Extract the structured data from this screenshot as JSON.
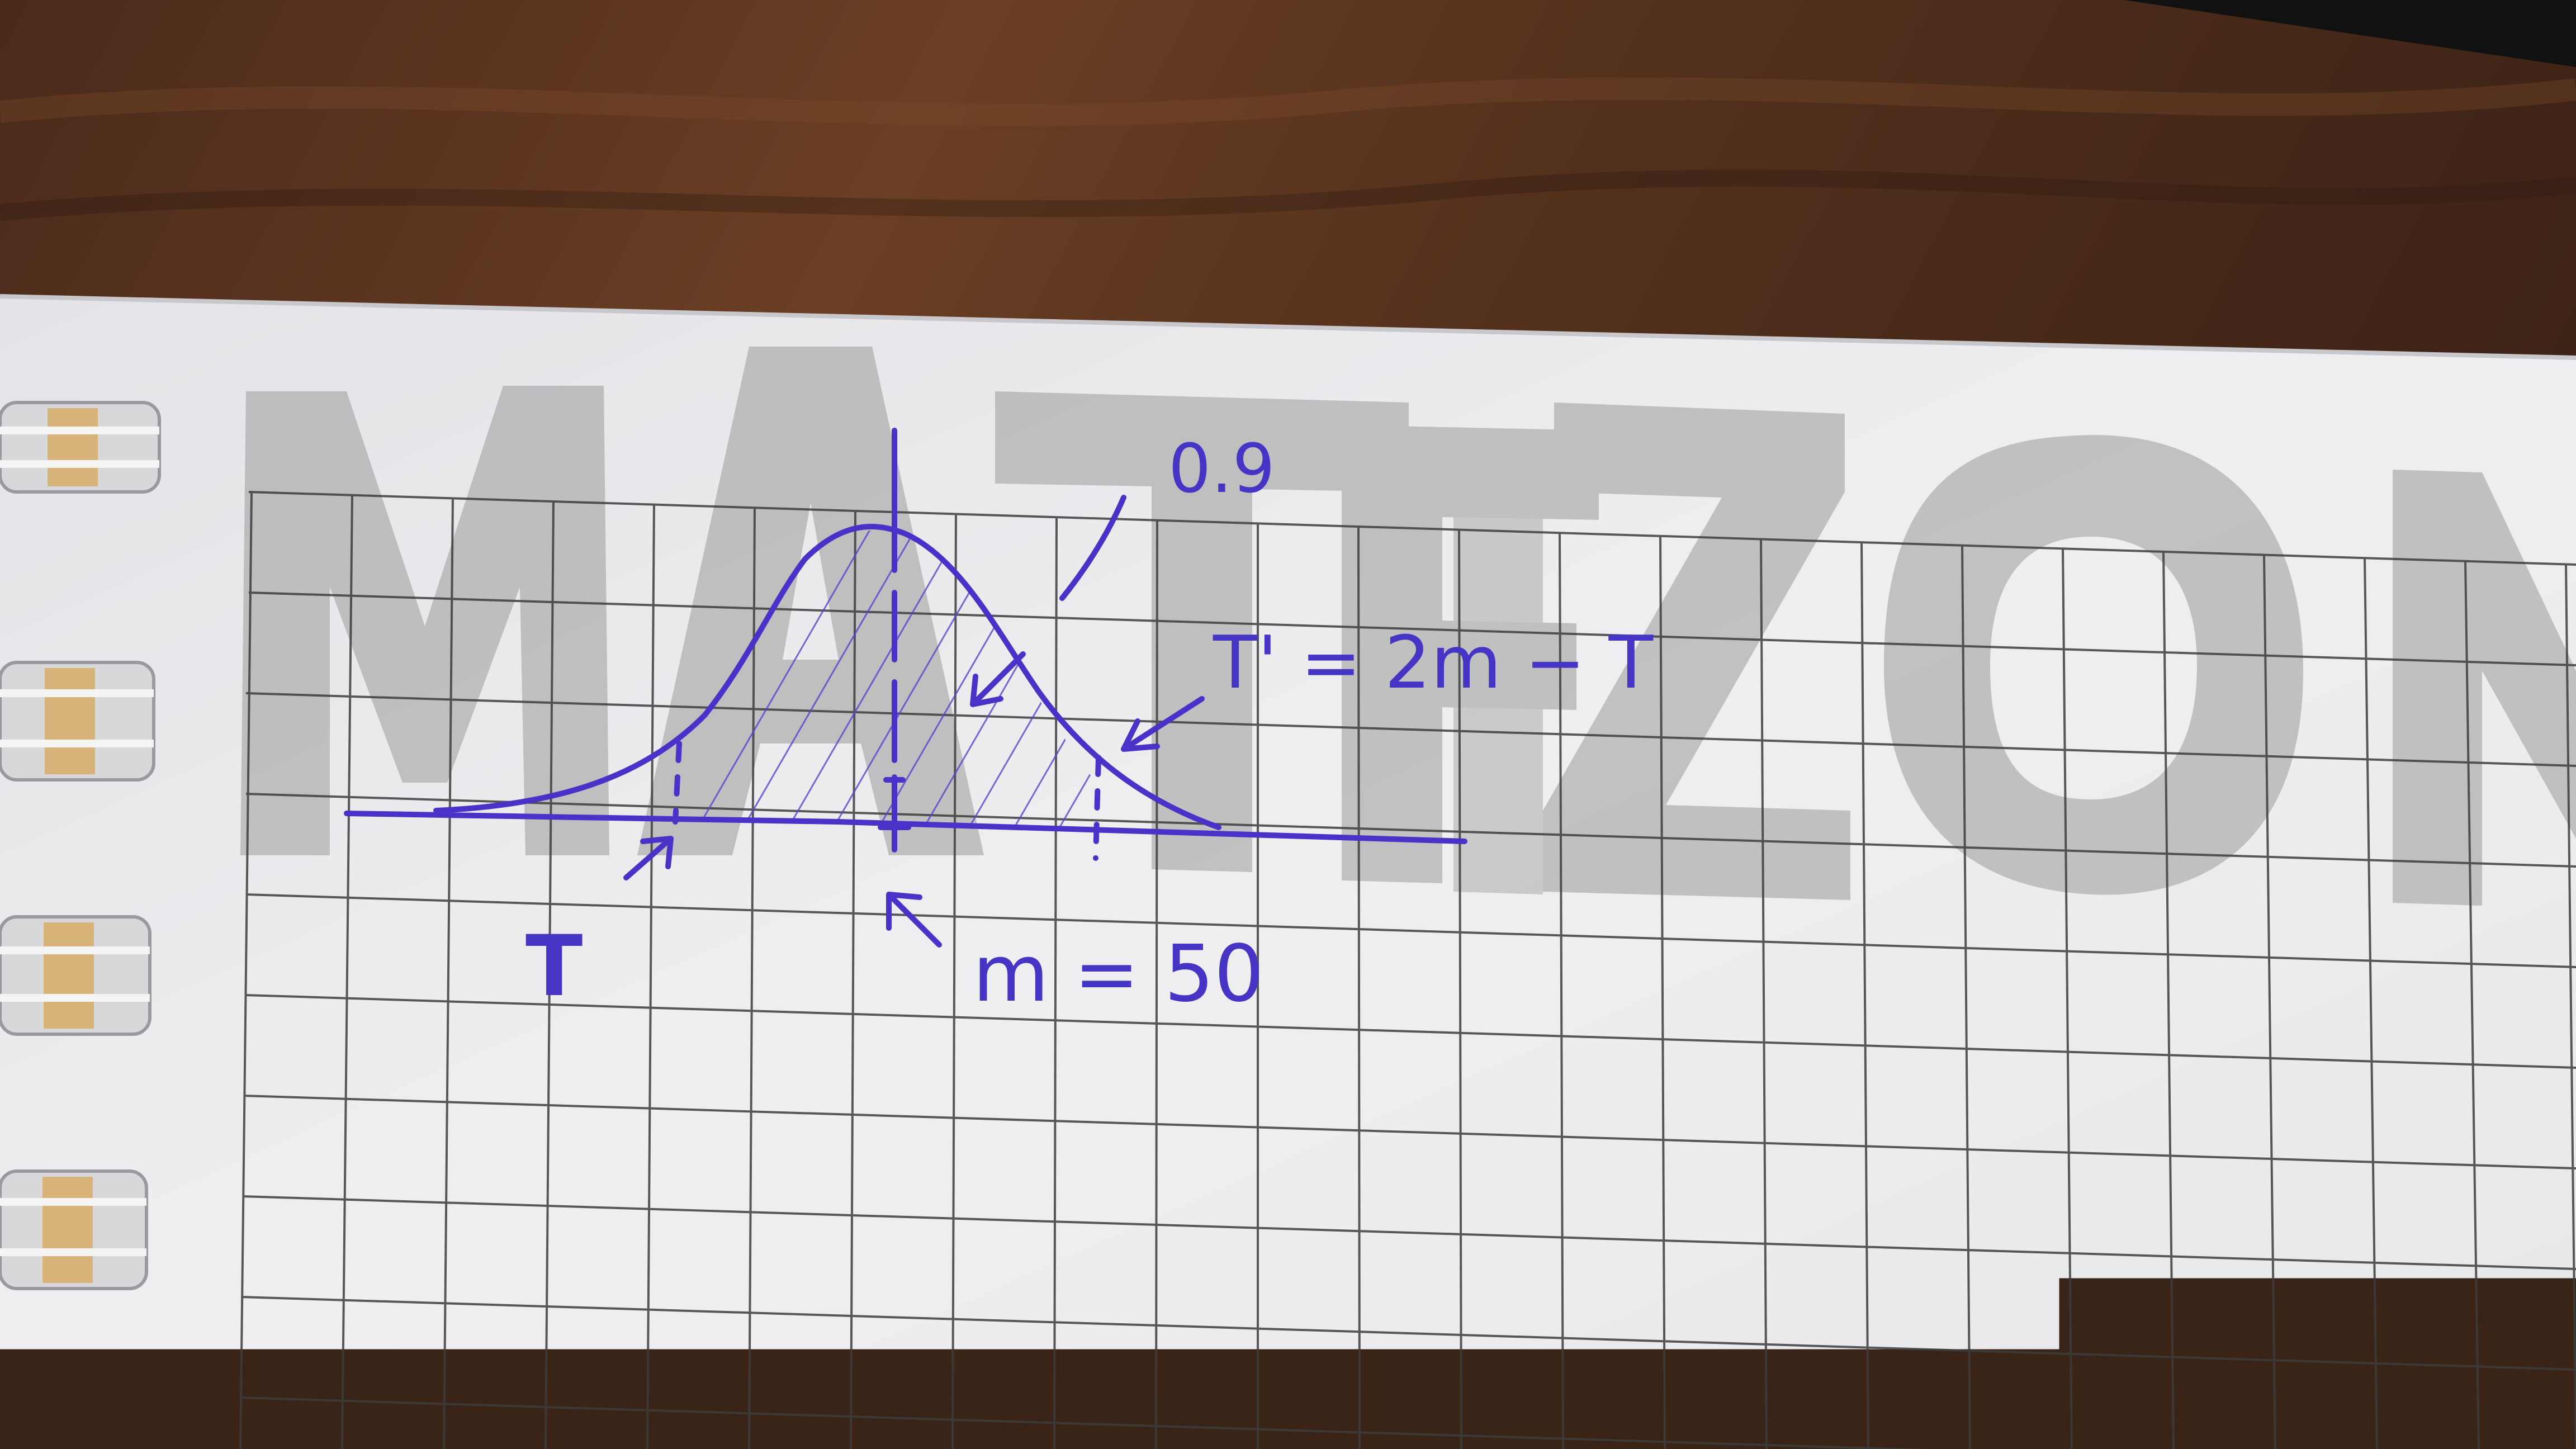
{
  "photo": {
    "subject": "hand-drawn normal distribution sketch on grid notebook paper",
    "colors": {
      "ink": "#4634c4",
      "paper": "#ececee",
      "grid": "#3c3c3c",
      "table": "#5a3420",
      "watermark": "#9a9a9a"
    }
  },
  "sketch": {
    "area_label": "0.9",
    "formula": "T' = 2m − T",
    "left_marker": "T",
    "mean_label": "m = 50"
  },
  "watermark": {
    "text": "MATFIZ ON"
  }
}
